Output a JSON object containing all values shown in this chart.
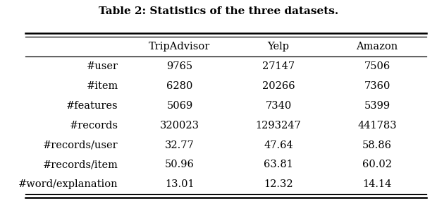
{
  "title": "Table 2: Statistics of the three datasets.",
  "columns": [
    "",
    "TripAdvisor",
    "Yelp",
    "Amazon"
  ],
  "rows": [
    [
      "#user",
      "9765",
      "27147",
      "7506"
    ],
    [
      "#item",
      "6280",
      "20266",
      "7360"
    ],
    [
      "#features",
      "5069",
      "7340",
      "5399"
    ],
    [
      "#records",
      "320023",
      "1293247",
      "441783"
    ],
    [
      "#records/user",
      "32.77",
      "47.64",
      "58.86"
    ],
    [
      "#records/item",
      "50.96",
      "63.81",
      "60.02"
    ],
    [
      "#word/explanation",
      "13.01",
      "12.32",
      "14.14"
    ]
  ],
  "background_color": "#ffffff",
  "title_fontsize": 11,
  "cell_fontsize": 10.5,
  "header_fontsize": 10.5
}
